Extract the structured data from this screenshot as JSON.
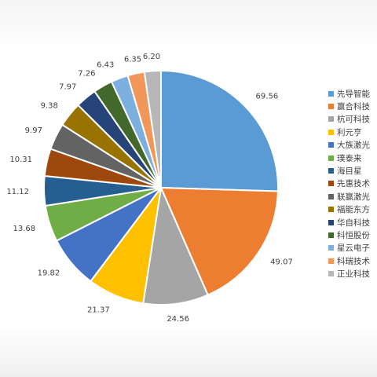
{
  "chart_data": {
    "type": "pie",
    "title": "",
    "categories": [
      "先导智能",
      "赢合科技",
      "杭可科技",
      "利元亨",
      "大族激光",
      "璞泰来",
      "海目星",
      "先惠技术",
      "联赢激光",
      "福能东方",
      "华自科技",
      "科恒股份",
      "星云电子",
      "科瑞技术",
      "正业科技"
    ],
    "values": [
      69.56,
      49.07,
      24.56,
      21.37,
      19.82,
      13.68,
      11.12,
      10.31,
      9.97,
      9.38,
      7.97,
      7.26,
      6.43,
      6.35,
      6.2
    ],
    "value_labels": [
      "69.56",
      "49.07",
      "24.56",
      "21.37",
      "19.82",
      "13.68",
      "11.12",
      "10.31",
      "9.97",
      "9.38",
      "7.97",
      "7.26",
      "6.43",
      "6.35",
      "6.20"
    ],
    "colors": [
      "#5B9BD5",
      "#ED7D31",
      "#A5A5A5",
      "#FFC000",
      "#4472C4",
      "#70AD47",
      "#255E91",
      "#9E480E",
      "#636363",
      "#997300",
      "#264478",
      "#43682B",
      "#7CAFDD",
      "#F1975A",
      "#B7B7B7"
    ],
    "legend_position": "right",
    "start_angle_deg": 0,
    "direction": "clockwise"
  }
}
